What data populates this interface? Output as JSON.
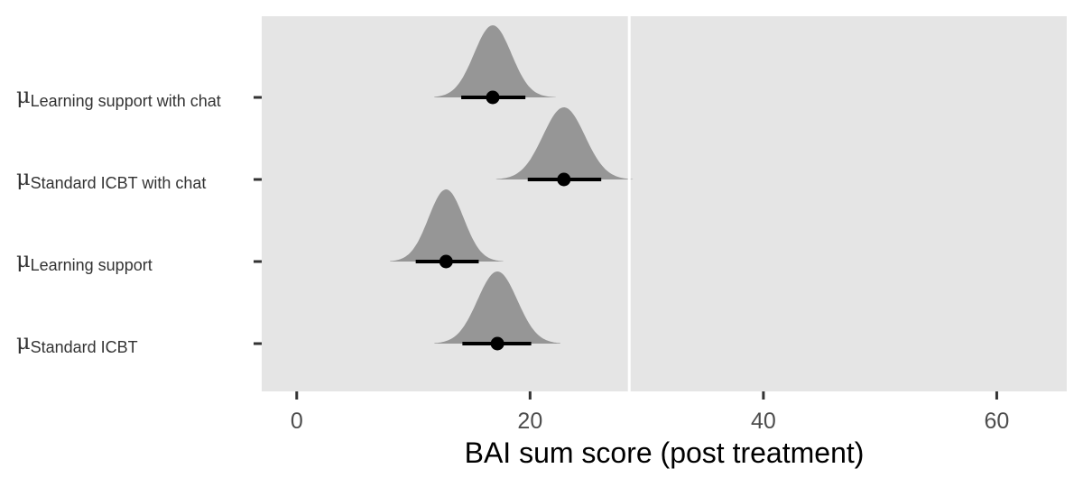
{
  "chart_data": {
    "type": "halfeye",
    "xlabel": "BAI sum score (post treatment)",
    "xlim": [
      -3,
      66
    ],
    "xticks": [
      0,
      20,
      40,
      60
    ],
    "tick_labels": [
      "0",
      "20",
      "40",
      "60"
    ],
    "grid": false,
    "reference_line_x": 28.5,
    "series": [
      {
        "symbol": "μ",
        "subscript": "Learning support with chat",
        "median": 16.8,
        "interval": [
          14.1,
          19.6
        ],
        "density_range": [
          11.8,
          22.2
        ],
        "sd": 1.6
      },
      {
        "symbol": "μ",
        "subscript": "Standard ICBT with chat",
        "median": 22.9,
        "interval": [
          19.8,
          26.1
        ],
        "density_range": [
          17.1,
          28.8
        ],
        "sd": 1.8
      },
      {
        "symbol": "μ",
        "subscript": "Learning support",
        "median": 12.8,
        "interval": [
          10.2,
          15.6
        ],
        "density_range": [
          8.0,
          17.7
        ],
        "sd": 1.5
      },
      {
        "symbol": "μ",
        "subscript": "Standard ICBT",
        "median": 17.2,
        "interval": [
          14.2,
          20.1
        ],
        "density_range": [
          11.8,
          22.6
        ],
        "sd": 1.7
      }
    ],
    "colors": {
      "panel_background": "#e5e5e5",
      "density_fill": "#969696",
      "point_interval": "#000000",
      "reference_line": "#ffffff",
      "tick_text": "#4d4d4d",
      "tick_mark": "#333333"
    }
  }
}
